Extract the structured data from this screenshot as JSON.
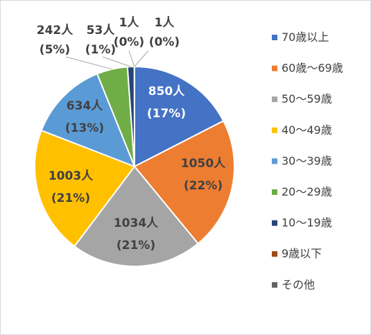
{
  "chart_data": {
    "type": "pie",
    "title": "",
    "legend_position": "right",
    "slices": [
      {
        "name": "70歳以上",
        "value": 850,
        "count_label": "850人",
        "pct_label": "(17%)",
        "color": "#4472C4",
        "label_color": "#ffffff"
      },
      {
        "name": "60歳〜69歳",
        "value": 1050,
        "count_label": "1050人",
        "pct_label": "(22%)",
        "color": "#ED7D31",
        "label_color": "#404040"
      },
      {
        "name": "50〜59歳",
        "value": 1034,
        "count_label": "1034人",
        "pct_label": "(21%)",
        "color": "#A5A5A5",
        "label_color": "#404040"
      },
      {
        "name": "40〜49歳",
        "value": 1003,
        "count_label": "1003人",
        "pct_label": "(21%)",
        "color": "#FFC000",
        "label_color": "#404040"
      },
      {
        "name": "30〜39歳",
        "value": 634,
        "count_label": "634人",
        "pct_label": "(13%)",
        "color": "#5B9BD5",
        "label_color": "#404040"
      },
      {
        "name": "20〜29歳",
        "value": 242,
        "count_label": "242人",
        "pct_label": "(5%)",
        "color": "#70AD47",
        "label_color": "#404040"
      },
      {
        "name": "10〜19歳",
        "value": 53,
        "count_label": "53人",
        "pct_label": "(1%)",
        "color": "#264478",
        "label_color": "#404040"
      },
      {
        "name": "9歳以下",
        "value": 1,
        "count_label": "1人",
        "pct_label": "(0%)",
        "color": "#9E480E",
        "label_color": "#404040"
      },
      {
        "name": "その他",
        "value": 1,
        "count_label": "1人",
        "pct_label": "(0%)",
        "color": "#636363",
        "label_color": "#404040"
      }
    ]
  }
}
